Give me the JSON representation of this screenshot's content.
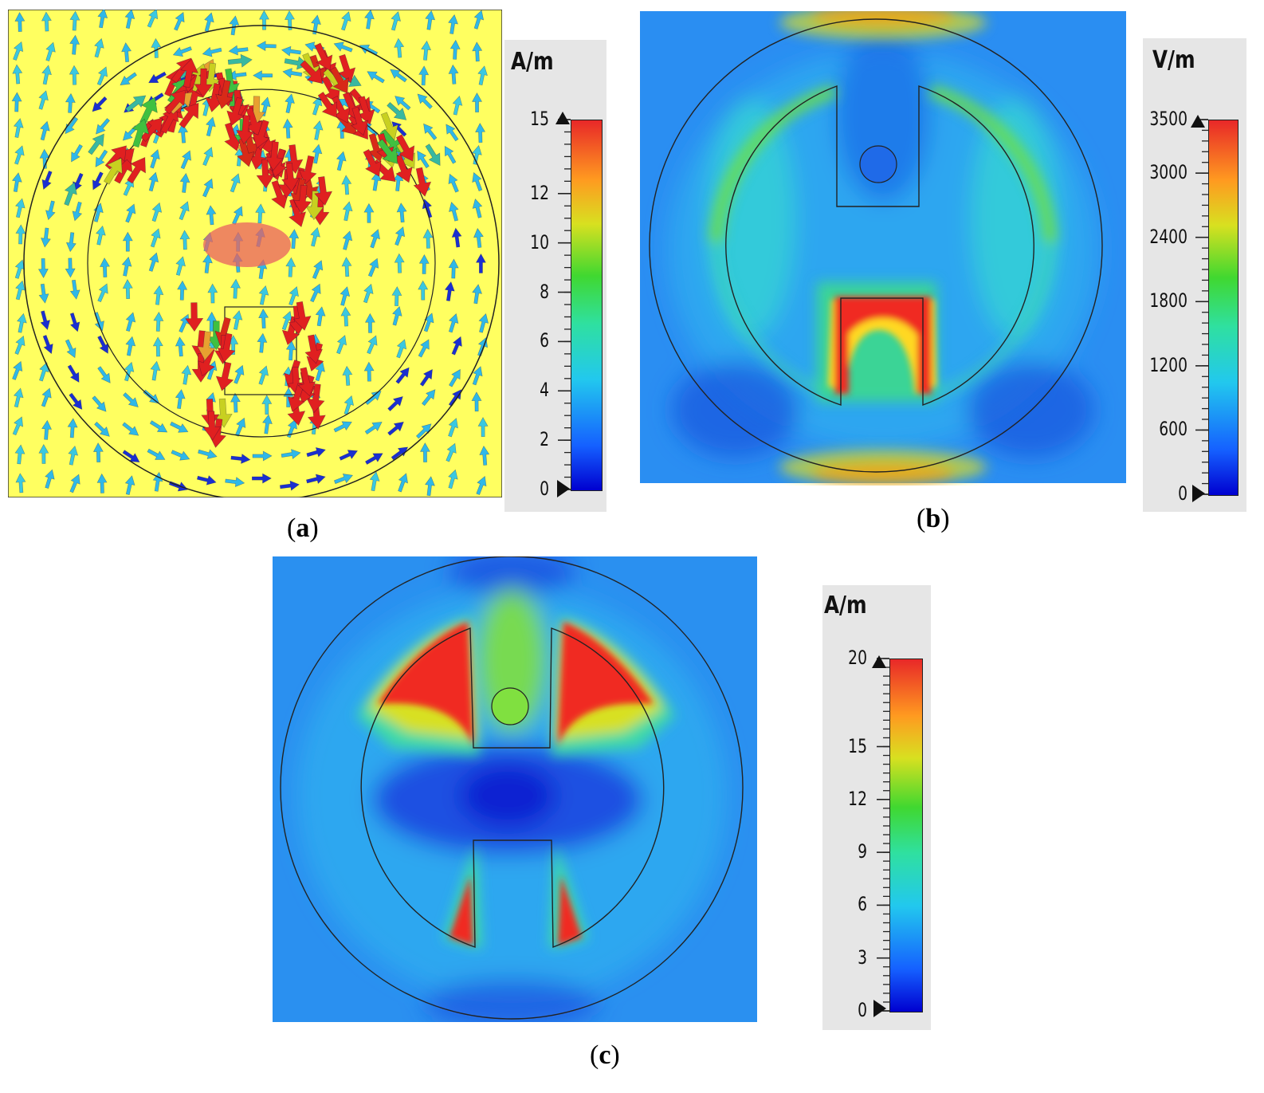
{
  "panels": [
    {
      "id": "a",
      "caption_letter": "a",
      "background": "#ffff55",
      "legend": {
        "unit": "A/m",
        "ticks": [
          "15",
          "12",
          "10",
          "8",
          "6",
          "4",
          "2",
          "0"
        ],
        "tick_values": [
          15,
          12,
          10,
          8,
          6,
          4,
          2,
          0
        ],
        "max": 15
      }
    },
    {
      "id": "b",
      "caption_letter": "b",
      "legend": {
        "unit": "V/m",
        "ticks": [
          "3500",
          "3000",
          "2400",
          "1800",
          "1200",
          "600",
          "0"
        ],
        "tick_values": [
          3500,
          3000,
          2400,
          1800,
          1200,
          600,
          0
        ],
        "max": 3500
      }
    },
    {
      "id": "c",
      "caption_letter": "c",
      "legend": {
        "unit": "A/m",
        "ticks": [
          "20",
          "15",
          "12",
          "9",
          "6",
          "3",
          "0"
        ],
        "tick_values": [
          20,
          15,
          12,
          9,
          6,
          3,
          0
        ],
        "max": 20
      }
    }
  ],
  "colormap": [
    "#0000d8",
    "#1f6fff",
    "#24c8e8",
    "#2fe0a8",
    "#38d838",
    "#c8e820",
    "#ffb020",
    "#ff6020",
    "#e82020"
  ],
  "icons": {
    "arrow-max": "triangle-up",
    "arrow-min": "play-right"
  }
}
